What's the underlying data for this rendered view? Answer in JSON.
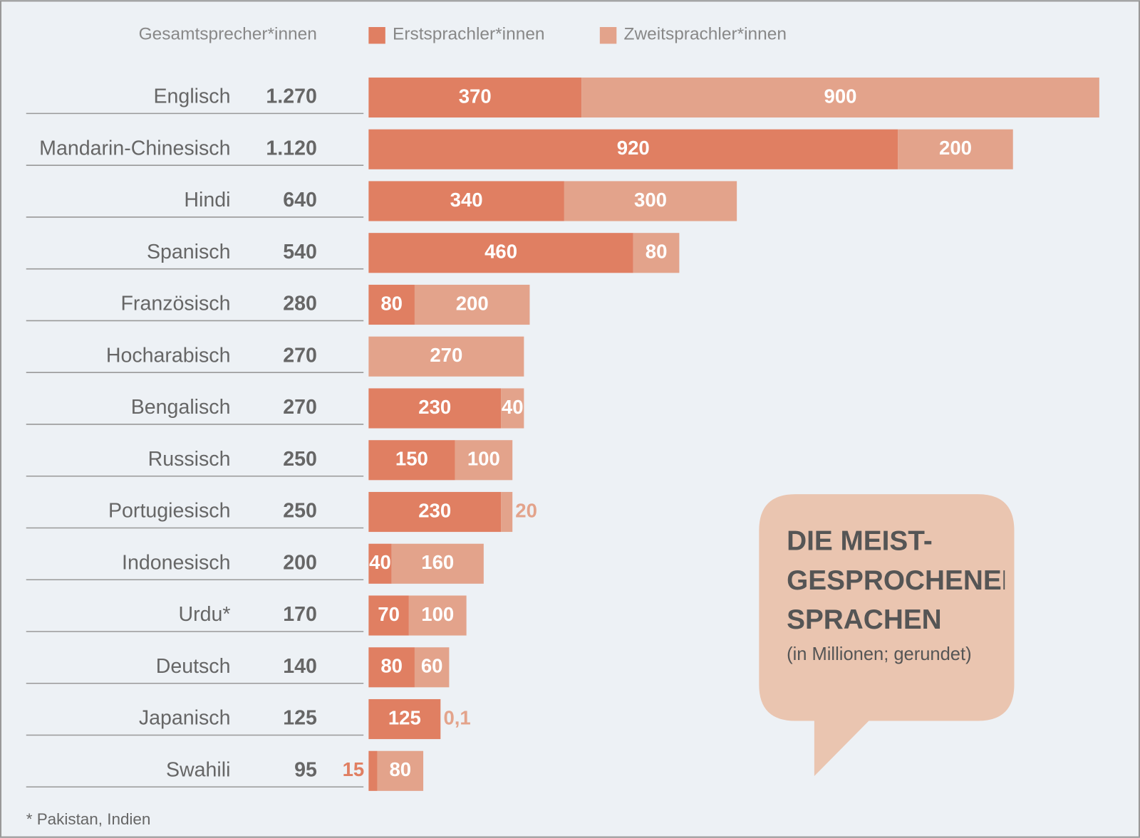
{
  "chart_data": {
    "type": "stacked_barh",
    "title": "DIE MEIST-GESPROCHENEN SPRACHEN",
    "subtitle": "(in Millionen; gerundet)",
    "footnote": "* Pakistan, Indien",
    "categories": [
      "Englisch",
      "Mandarin-Chinesisch",
      "Hindi",
      "Spanisch",
      "Französisch",
      "Hocharabisch",
      "Bengalisch",
      "Russisch",
      "Portugiesisch",
      "Indonesisch",
      "Urdu*",
      "Deutsch",
      "Japanisch",
      "Swahili"
    ],
    "total": {
      "name": "Gesamtsprecher*innen",
      "values": [
        1270,
        1120,
        640,
        540,
        280,
        270,
        270,
        250,
        250,
        200,
        170,
        140,
        125,
        95
      ],
      "value_labels": [
        "1.270",
        "1.120",
        "640",
        "540",
        "280",
        "270",
        "270",
        "250",
        "250",
        "200",
        "170",
        "140",
        "125",
        "95"
      ]
    },
    "series": [
      {
        "name": "Erstsprachler*innen",
        "color": "#e07f62",
        "values": [
          370,
          920,
          340,
          460,
          80,
          null,
          230,
          150,
          230,
          40,
          70,
          80,
          125,
          15
        ]
      },
      {
        "name": "Zweitsprachler*innen",
        "color": "#e3a38b",
        "values": [
          900,
          200,
          300,
          80,
          200,
          270,
          40,
          100,
          20,
          160,
          100,
          60,
          0.1,
          80
        ],
        "value_labels": [
          "900",
          "200",
          "300",
          "80",
          "200",
          "270",
          "40",
          "100",
          "20",
          "160",
          "100",
          "60",
          "0,1",
          "80"
        ]
      }
    ],
    "xlim": [
      0,
      1270
    ]
  }
}
